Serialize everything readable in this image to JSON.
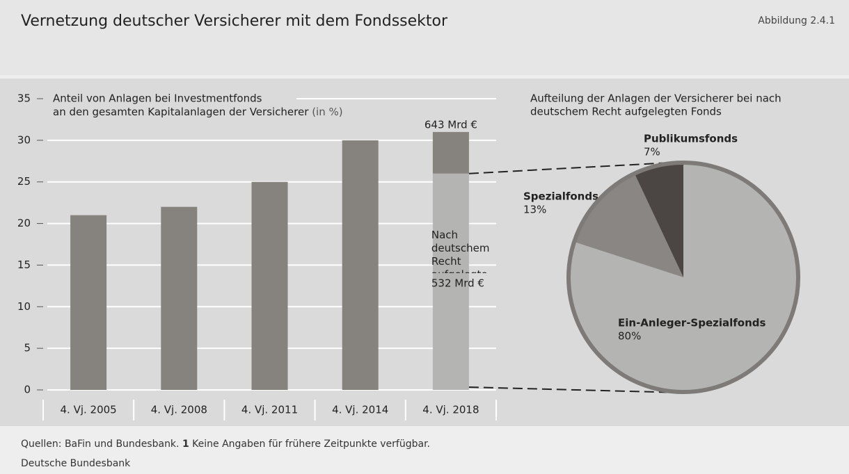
{
  "header": {
    "title": "Vernetzung deutscher Versicherer mit dem Fondssektor",
    "figure_label": "Abbildung 2.4.1"
  },
  "chart_data": [
    {
      "type": "bar",
      "y_axis_title": [
        "Anteil von Anlagen bei Investmentfonds",
        "an den gesamten Kapitalanlagen der Versicherer"
      ],
      "y_axis_unit": "(in %)",
      "categories": [
        "4. Vj. 2005",
        "4. Vj. 2008",
        "4. Vj. 2011",
        "4. Vj. 2014",
        "4. Vj. 2018"
      ],
      "stacked": true,
      "series": [
        {
          "name": "Nach deutschem Recht aufgelegte Fonds",
          "name_footnote": "1)",
          "color": "#b4b4b2",
          "values": [
            null,
            null,
            null,
            null,
            26
          ]
        },
        {
          "color": "#86827e",
          "values": [
            21,
            22,
            25,
            30,
            5
          ]
        }
      ],
      "annotations": [
        {
          "text": "643 Mrd €"
        },
        {
          "text": "532 Mrd €"
        }
      ],
      "ylim": [
        0,
        35
      ],
      "yticks": [
        0,
        5,
        10,
        15,
        20,
        25,
        30,
        35
      ],
      "grid": true
    },
    {
      "type": "pie",
      "title": [
        "Aufteilung der Anlagen der Versicherer bei nach",
        "deutschem Recht aufgelegten Fonds"
      ],
      "categories": [
        "Ein-Anleger-Spezialfonds",
        "Spezialfonds",
        "Publikumsfonds"
      ],
      "values": [
        80,
        13,
        7
      ],
      "value_labels": [
        "80%",
        "13%",
        "7%"
      ],
      "colors": [
        "#b4b4b2",
        "#8a8683",
        "#4b4643"
      ]
    }
  ],
  "footer": {
    "source": "Quellen: BaFin und Bundesbank.",
    "footnote_number": "1",
    "footnote_text": "Keine Angaben für frühere Zeitpunkte verfügbar.",
    "credit": "Deutsche Bundesbank"
  }
}
